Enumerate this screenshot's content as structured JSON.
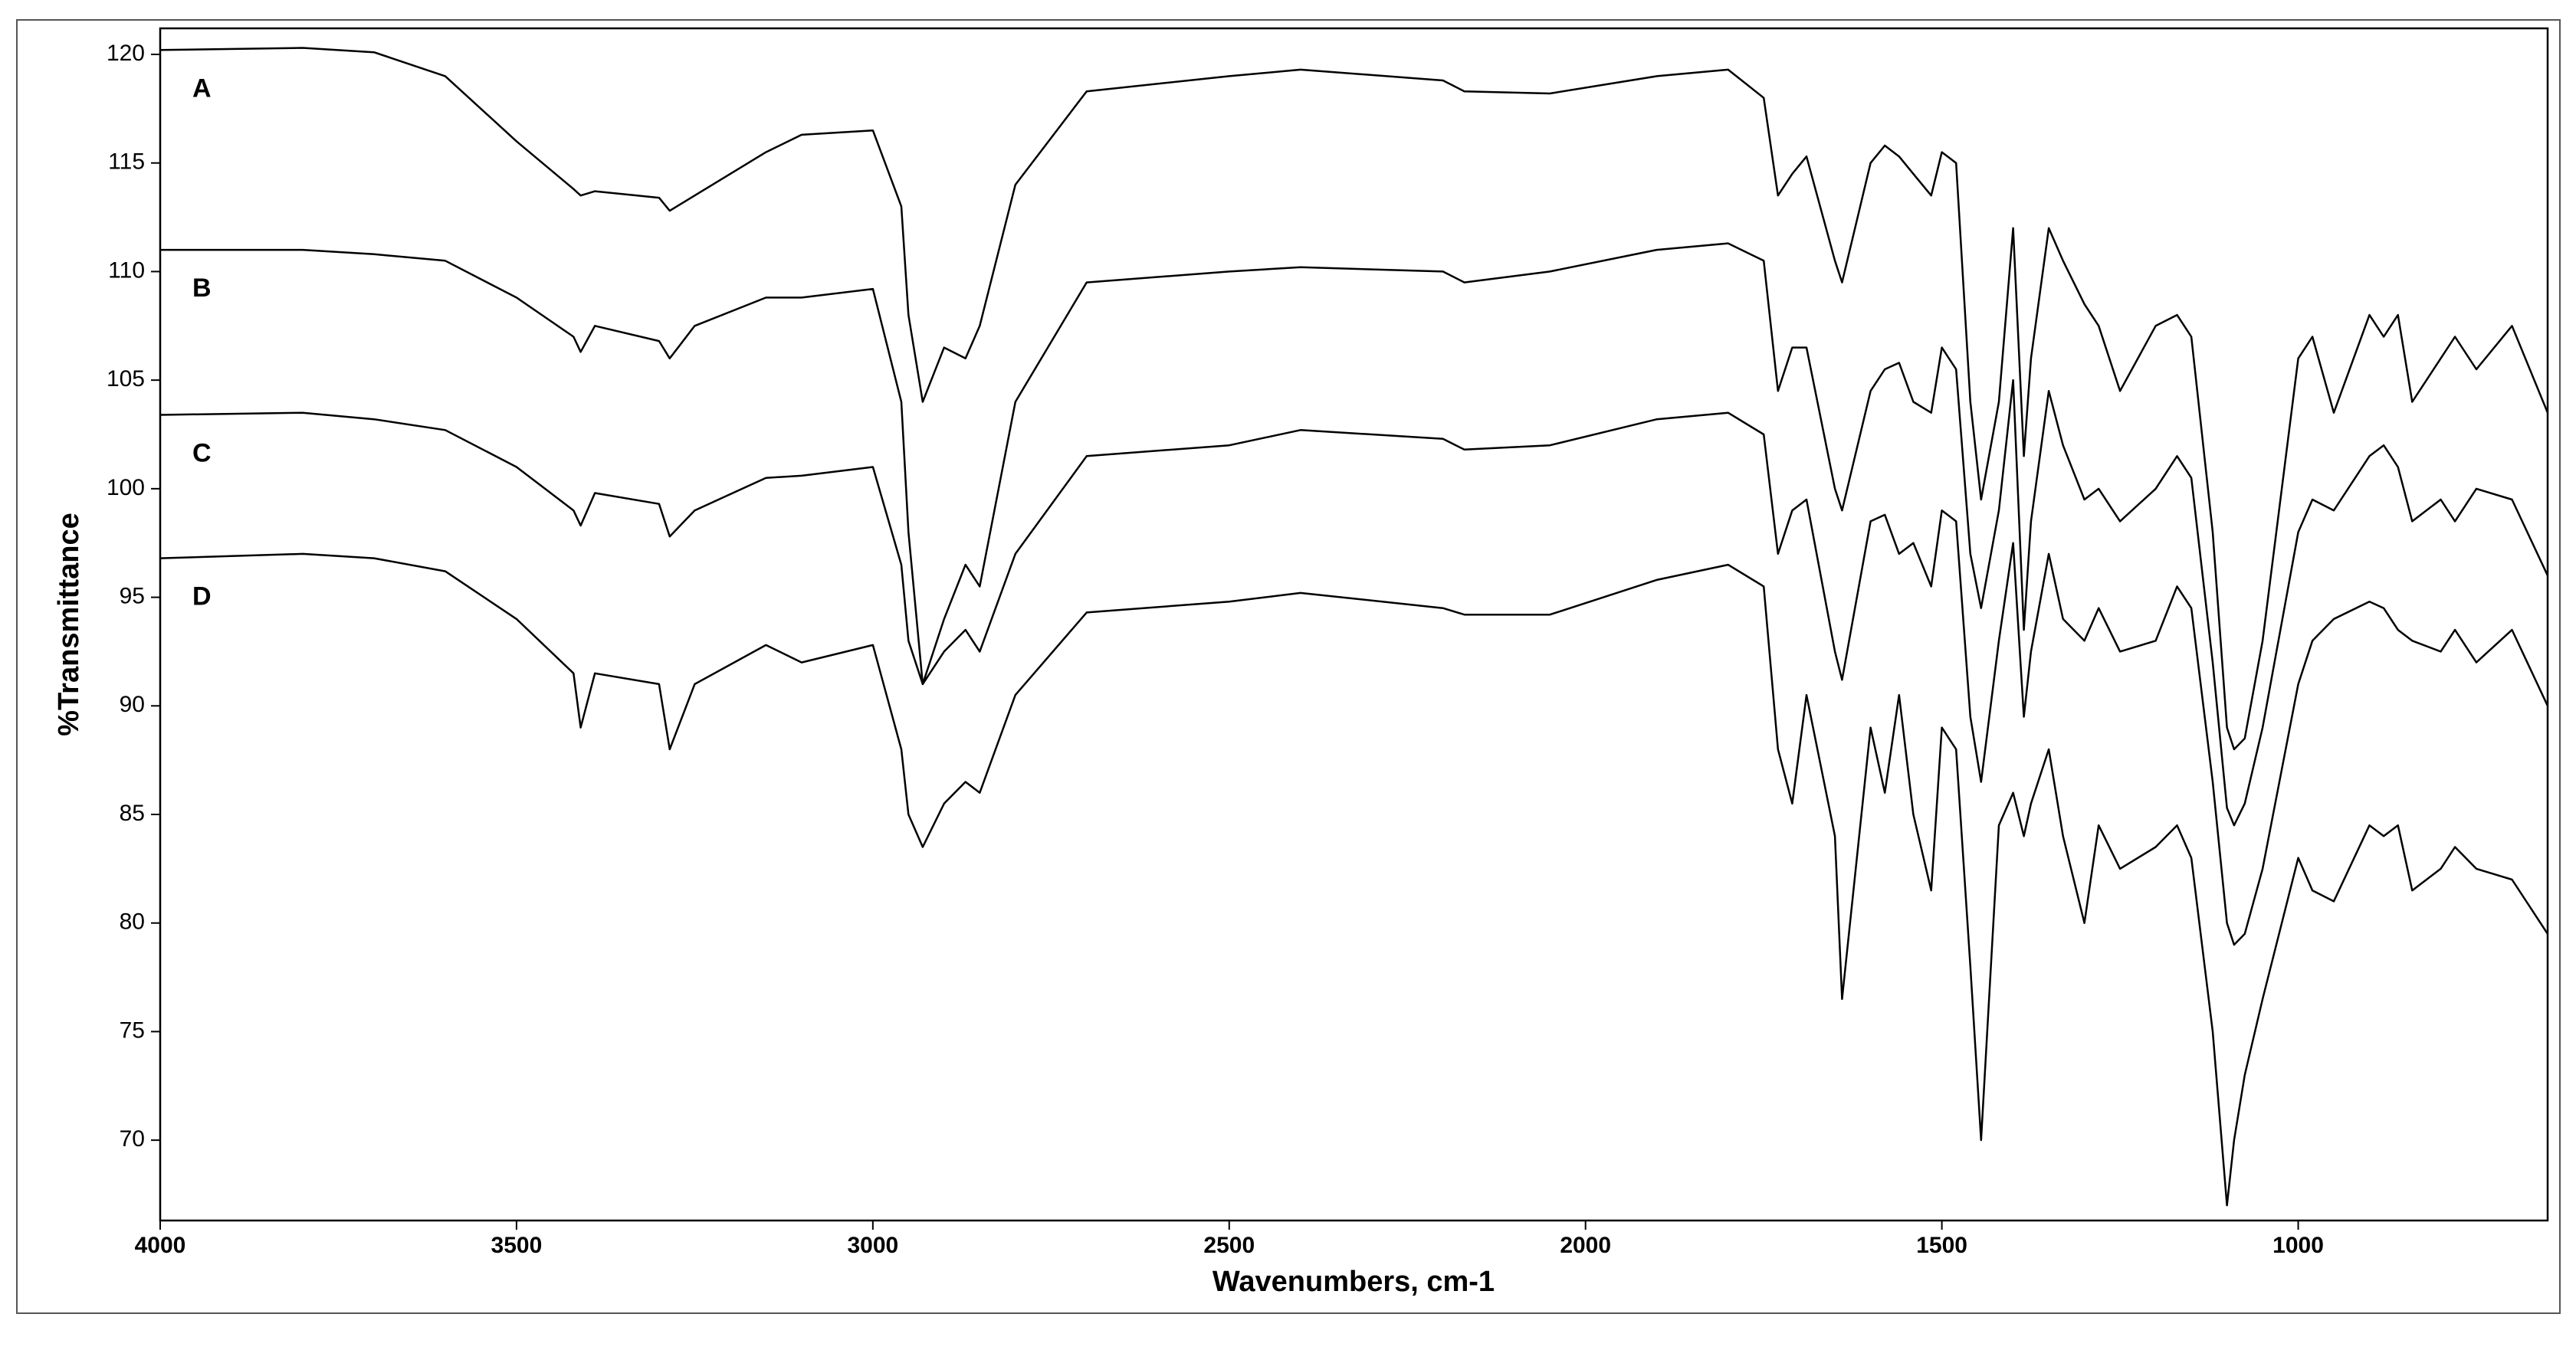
{
  "chart_data": {
    "type": "line",
    "xlabel": "Wavenumbers, cm-1",
    "ylabel": "%Transmittance",
    "xlim": [
      4000,
      650
    ],
    "ylim": [
      66.3,
      121.2
    ],
    "xticks": [
      4000,
      3500,
      3000,
      2500,
      2000,
      1500,
      1000
    ],
    "yticks": [
      70,
      75,
      80,
      85,
      90,
      95,
      100,
      105,
      110,
      115,
      120
    ],
    "grid": false,
    "x": [
      4000,
      3800,
      3700,
      3600,
      3500,
      3420,
      3410,
      3390,
      3300,
      3285,
      3250,
      3150,
      3100,
      3000,
      2960,
      2950,
      2930,
      2900,
      2870,
      2850,
      2800,
      2700,
      2500,
      2400,
      2200,
      2170,
      2050,
      1900,
      1800,
      1750,
      1730,
      1710,
      1690,
      1650,
      1640,
      1600,
      1580,
      1560,
      1540,
      1515,
      1500,
      1480,
      1460,
      1445,
      1420,
      1400,
      1385,
      1375,
      1350,
      1330,
      1300,
      1280,
      1250,
      1200,
      1170,
      1150,
      1120,
      1100,
      1090,
      1075,
      1050,
      1000,
      980,
      950,
      900,
      880,
      860,
      840,
      800,
      780,
      750,
      700,
      650
    ],
    "series": [
      {
        "name": "A",
        "color": "#000000",
        "values": [
          120.2,
          120.3,
          120.1,
          119,
          116,
          113.8,
          113.5,
          113.7,
          113.4,
          112.8,
          113.5,
          115.5,
          116.3,
          116.5,
          113,
          108,
          104,
          106.5,
          106,
          107.5,
          114,
          118.3,
          119,
          119.3,
          118.8,
          118.3,
          118.2,
          119,
          119.3,
          118,
          113.5,
          114.5,
          115.3,
          110.5,
          109.5,
          115,
          115.8,
          115.3,
          114.5,
          113.5,
          115.5,
          115,
          104,
          99.5,
          104,
          112,
          101.5,
          106,
          112,
          110.5,
          108.5,
          107.5,
          104.5,
          107.5,
          108,
          107,
          98,
          89,
          88,
          88.5,
          93,
          106,
          107,
          103.5,
          108,
          107,
          108,
          104,
          106,
          107,
          105.5,
          107.5,
          103.5
        ]
      },
      {
        "name": "B",
        "color": "#000000",
        "values": [
          111,
          111,
          110.8,
          110.5,
          108.8,
          107,
          106.3,
          107.5,
          106.8,
          106,
          107.5,
          108.8,
          108.8,
          109.2,
          104,
          98,
          91,
          94,
          96.5,
          95.5,
          104,
          109.5,
          110,
          110.2,
          110,
          109.5,
          110,
          111,
          111.3,
          110.5,
          104.5,
          106.5,
          106.5,
          100,
          99,
          104.5,
          105.5,
          105.8,
          104,
          103.5,
          106.5,
          105.5,
          97,
          94.5,
          99,
          105,
          93.5,
          98.5,
          104.5,
          102,
          99.5,
          100,
          98.5,
          100,
          101.5,
          100.5,
          92,
          85.3,
          84.5,
          85.5,
          89,
          98,
          99.5,
          99,
          101.5,
          102,
          101,
          98.5,
          99.5,
          98.5,
          100,
          99.5,
          96
        ]
      },
      {
        "name": "C",
        "color": "#000000",
        "values": [
          103.4,
          103.5,
          103.2,
          102.7,
          101,
          99,
          98.3,
          99.8,
          99.3,
          97.8,
          99,
          100.5,
          100.6,
          101,
          96.5,
          93,
          91,
          92.5,
          93.5,
          92.5,
          97,
          101.5,
          102,
          102.7,
          102.3,
          101.8,
          102,
          103.2,
          103.5,
          102.5,
          97,
          99,
          99.5,
          92.5,
          91.2,
          98.5,
          98.8,
          97,
          97.5,
          95.5,
          99,
          98.5,
          89.5,
          86.5,
          93,
          97.5,
          89.5,
          92.5,
          97,
          94,
          93,
          94.5,
          92.5,
          93,
          95.5,
          94.5,
          86.5,
          80,
          79,
          79.5,
          82.5,
          91,
          93,
          94,
          94.8,
          94.5,
          93.5,
          93,
          92.5,
          93.5,
          92,
          93.5,
          90
        ]
      },
      {
        "name": "D",
        "color": "#000000",
        "values": [
          96.8,
          97,
          96.8,
          96.2,
          94,
          91.5,
          89,
          91.5,
          91,
          88,
          91,
          92.8,
          92,
          92.8,
          88,
          85,
          83.5,
          85.5,
          86.5,
          86,
          90.5,
          94.3,
          94.8,
          95.2,
          94.5,
          94.2,
          94.2,
          95.8,
          96.5,
          95.5,
          88,
          85.5,
          90.5,
          84,
          76.5,
          89,
          86,
          90.5,
          85,
          81.5,
          89,
          88,
          78,
          70,
          84.5,
          86,
          84,
          85.5,
          88,
          84,
          80,
          84.5,
          82.5,
          83.5,
          84.5,
          83,
          75,
          67,
          70,
          73,
          76.5,
          83,
          81.5,
          81,
          84.5,
          84,
          84.5,
          81.5,
          82.5,
          83.5,
          82.5,
          82,
          79.5
        ]
      }
    ]
  }
}
